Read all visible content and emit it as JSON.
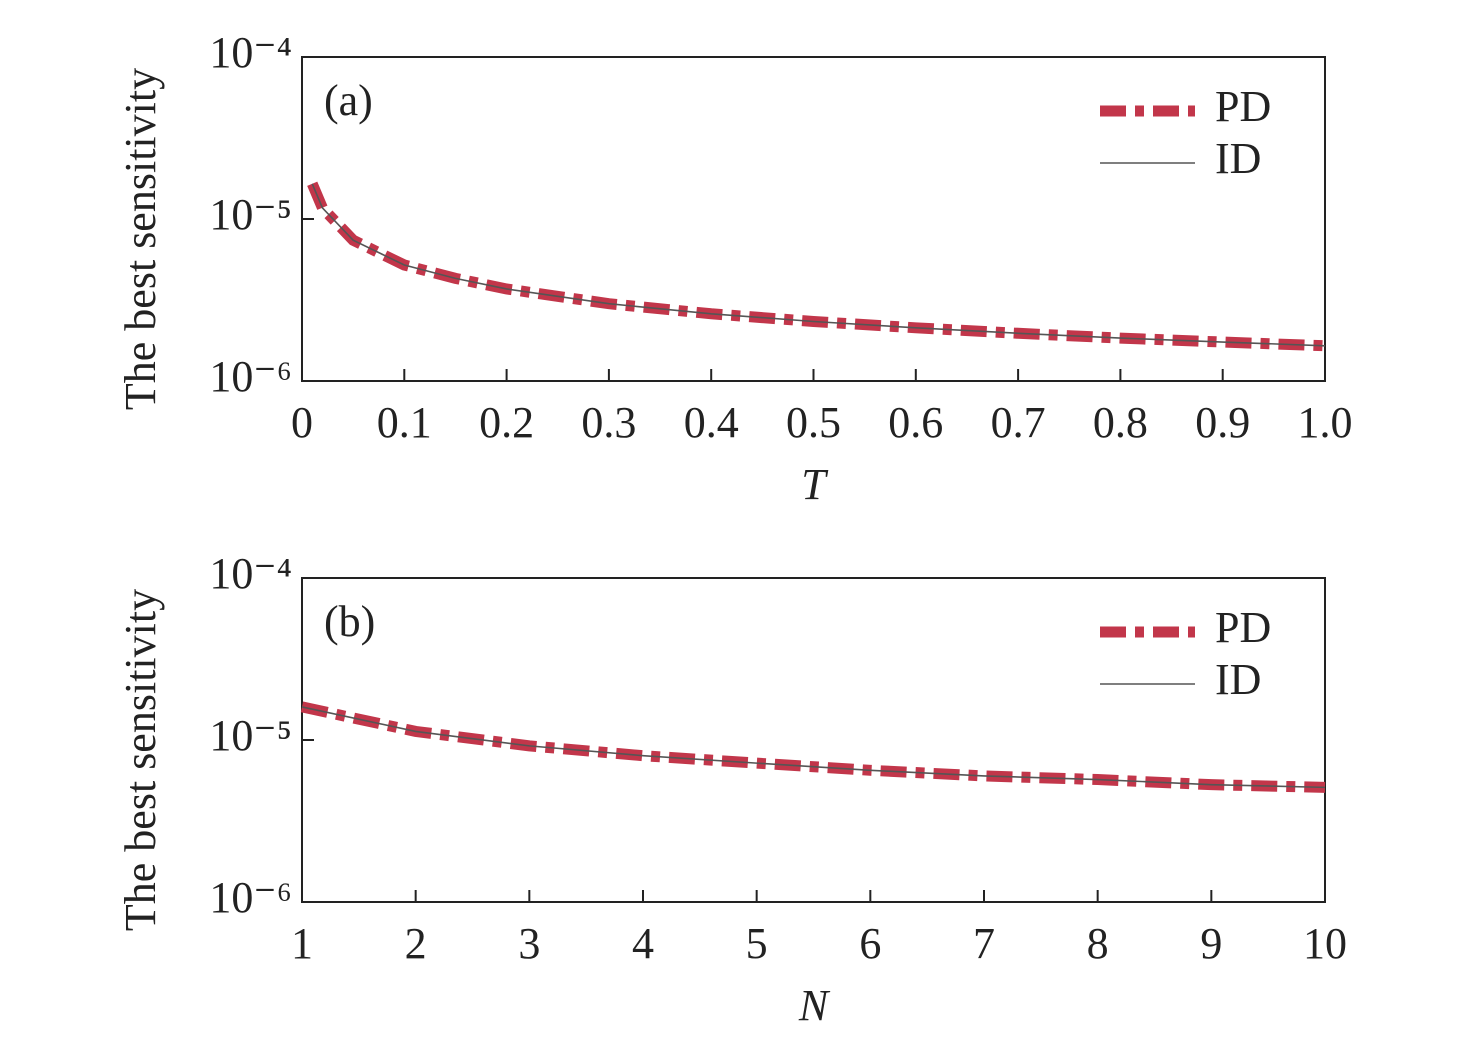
{
  "chart_data": [
    {
      "type": "line",
      "annotation": "(a)",
      "xlabel": "T",
      "ylabel": "The best sensitivity",
      "yscale": "log",
      "legend": "upper right",
      "xlim": [
        0,
        1
      ],
      "xticks": [
        0,
        0.1,
        0.2,
        0.3,
        0.4,
        0.5,
        0.6,
        0.7,
        0.8,
        0.9,
        {
          "value": 1,
          "label": "1.0"
        }
      ],
      "ylim": [
        1e-06,
        0.0001
      ],
      "yticks": [
        {
          "value": 1e-06,
          "label": "10⁻⁶"
        },
        {
          "value": 1e-05,
          "label": "10⁻⁵"
        },
        {
          "value": 0.0001,
          "label": "10⁻⁴"
        }
      ],
      "x": [
        0.01,
        0.02,
        0.05,
        0.1,
        0.15,
        0.2,
        0.3,
        0.4,
        0.5,
        0.6,
        0.7,
        0.8,
        0.9,
        1.0
      ],
      "series": [
        {
          "name": "PD",
          "color": "#c2364a",
          "style": "dashdot",
          "values": [
            1.65e-05,
            1.17e-05,
            7.4e-06,
            5.2e-06,
            4.3e-06,
            3.7e-06,
            3e-06,
            2.6e-06,
            2.33e-06,
            2.13e-06,
            1.97e-06,
            1.84e-06,
            1.74e-06,
            1.65e-06
          ]
        },
        {
          "name": "ID",
          "color": "#555555",
          "style": "solid",
          "values": [
            1.65e-05,
            1.17e-05,
            7.4e-06,
            5.2e-06,
            4.3e-06,
            3.7e-06,
            3e-06,
            2.6e-06,
            2.33e-06,
            2.13e-06,
            1.97e-06,
            1.84e-06,
            1.74e-06,
            1.65e-06
          ]
        }
      ]
    },
    {
      "type": "line",
      "annotation": "(b)",
      "xlabel": "N",
      "ylabel": "The best sensitivity",
      "yscale": "log",
      "legend": "upper right",
      "xlim": [
        1,
        10
      ],
      "xticks": [
        1,
        2,
        3,
        4,
        5,
        6,
        7,
        8,
        9,
        10
      ],
      "ylim": [
        1e-06,
        0.0001
      ],
      "yticks": [
        {
          "value": 1e-06,
          "label": "10⁻⁶"
        },
        {
          "value": 1e-05,
          "label": "10⁻⁵"
        },
        {
          "value": 0.0001,
          "label": "10⁻⁴"
        }
      ],
      "x": [
        1,
        2,
        3,
        4,
        5,
        6,
        7,
        8,
        9,
        10
      ],
      "series": [
        {
          "name": "PD",
          "color": "#c2364a",
          "style": "dashdot",
          "values": [
            1.6e-05,
            1.13e-05,
            9.2e-06,
            8e-06,
            7.2e-06,
            6.5e-06,
            6e-06,
            5.7e-06,
            5.3e-06,
            5.1e-06
          ]
        },
        {
          "name": "ID",
          "color": "#555555",
          "style": "solid",
          "values": [
            1.6e-05,
            1.13e-05,
            9.2e-06,
            8e-06,
            7.2e-06,
            6.5e-06,
            6e-06,
            5.7e-06,
            5.3e-06,
            5.1e-06
          ]
        }
      ]
    }
  ]
}
